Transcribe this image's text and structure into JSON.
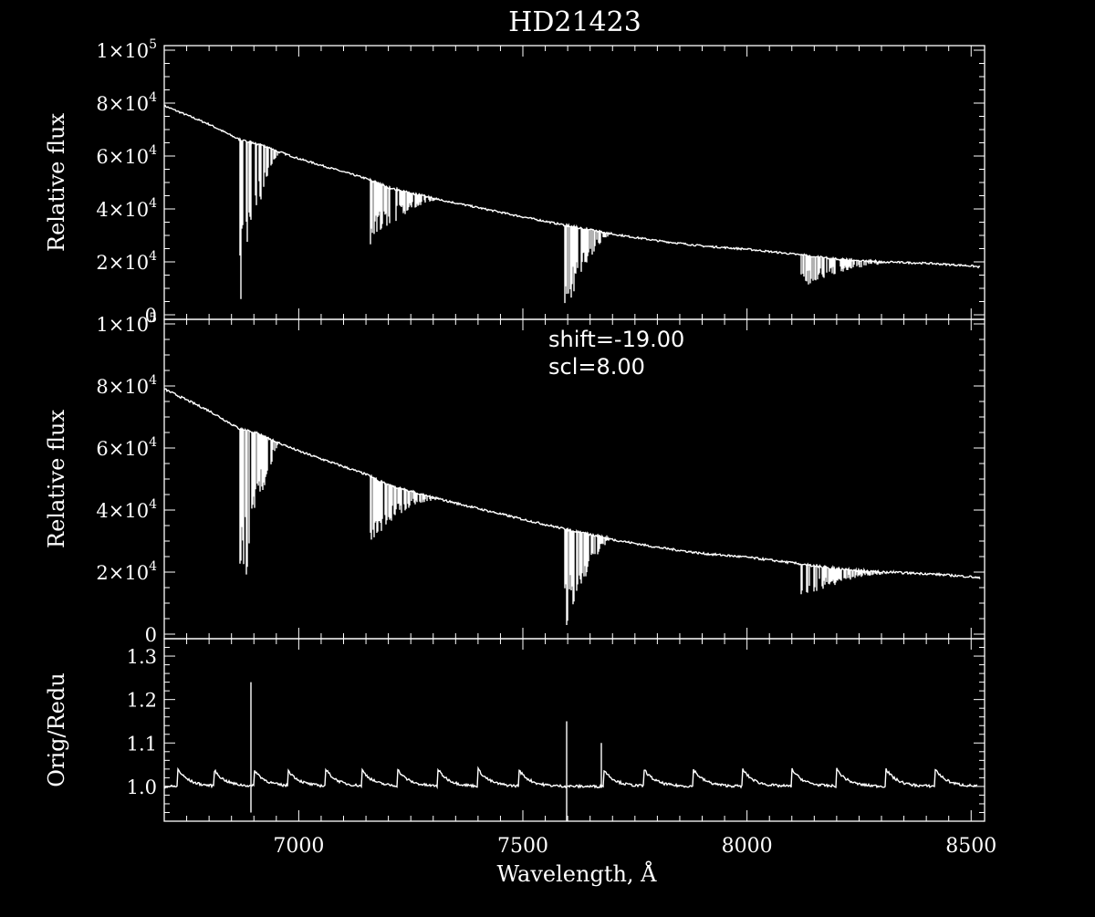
{
  "title": "HD21423",
  "colors": {
    "background": "#000000",
    "foreground": "#ffffff"
  },
  "x_axis": {
    "label": "Wavelength, Å",
    "range": [
      6700,
      8530
    ],
    "ticks": [
      7000,
      7500,
      8000,
      8500
    ],
    "tick_labels": [
      "7000",
      "7500",
      "8000",
      "8500"
    ]
  },
  "chart_data": [
    {
      "type": "line",
      "panel": "top",
      "ylabel": "Relative flux",
      "ylim": [
        0,
        100000
      ],
      "yticks": [
        {
          "value": 0,
          "mant": "0",
          "exp": ""
        },
        {
          "value": 20000,
          "mant": "2×10",
          "exp": "4"
        },
        {
          "value": 40000,
          "mant": "4×10",
          "exp": "4"
        },
        {
          "value": 60000,
          "mant": "6×10",
          "exp": "4"
        },
        {
          "value": 80000,
          "mant": "8×10",
          "exp": "4"
        },
        {
          "value": 100000,
          "mant": "1×10",
          "exp": "5"
        }
      ],
      "continuum": {
        "x": [
          6700,
          6800,
          6870,
          6900,
          7000,
          7100,
          7150,
          7200,
          7300,
          7400,
          7500,
          7590,
          7700,
          7800,
          7900,
          8000,
          8100,
          8200,
          8300,
          8400,
          8500,
          8520
        ],
        "y": [
          79000,
          72000,
          66000,
          65000,
          59000,
          54000,
          51500,
          48000,
          44000,
          40500,
          37000,
          34000,
          30500,
          28000,
          26000,
          24800,
          23000,
          21000,
          20000,
          19500,
          18500,
          18000
        ]
      },
      "absorption_bands": [
        {
          "from": 6868,
          "to": 6960,
          "depth_to": 3000
        },
        {
          "from": 7160,
          "to": 7320,
          "depth_to": 25000
        },
        {
          "from": 7593,
          "to": 7700,
          "depth_to": 0
        },
        {
          "from": 8120,
          "to": 8330,
          "depth_to": 10000
        }
      ]
    },
    {
      "type": "line",
      "panel": "middle",
      "ylabel": "Relative flux",
      "ylim": [
        0,
        100000
      ],
      "yticks": [
        {
          "value": 0,
          "mant": "0",
          "exp": ""
        },
        {
          "value": 20000,
          "mant": "2×10",
          "exp": "4"
        },
        {
          "value": 40000,
          "mant": "4×10",
          "exp": "4"
        },
        {
          "value": 60000,
          "mant": "6×10",
          "exp": "4"
        },
        {
          "value": 80000,
          "mant": "8×10",
          "exp": "4"
        },
        {
          "value": 100000,
          "mant": "1×10",
          "exp": "5"
        }
      ],
      "annotations": [
        "shift=-19.00",
        "scl=8.00"
      ],
      "continuum": {
        "x": [
          6700,
          6800,
          6870,
          6900,
          7000,
          7100,
          7150,
          7200,
          7300,
          7400,
          7500,
          7590,
          7700,
          7800,
          7900,
          8000,
          8100,
          8200,
          8300,
          8400,
          8500,
          8520
        ],
        "y": [
          79000,
          72000,
          66000,
          65000,
          59000,
          54000,
          51500,
          48000,
          44000,
          40500,
          37000,
          34000,
          30500,
          28000,
          26000,
          24800,
          23000,
          21000,
          20000,
          19500,
          18500,
          18000
        ]
      },
      "absorption_bands": [
        {
          "from": 6868,
          "to": 6960,
          "depth_to": 3000
        },
        {
          "from": 7160,
          "to": 7320,
          "depth_to": 29000
        },
        {
          "from": 7593,
          "to": 7700,
          "depth_to": 0
        },
        {
          "from": 8120,
          "to": 8330,
          "depth_to": 11000
        }
      ]
    },
    {
      "type": "line",
      "panel": "bottom",
      "ylabel": "Orig/Redu",
      "ylim": [
        0.92,
        1.34
      ],
      "yticks": [
        {
          "value": 1.0,
          "mant": "1.0",
          "exp": ""
        },
        {
          "value": 1.1,
          "mant": "1.1",
          "exp": ""
        },
        {
          "value": 1.2,
          "mant": "1.2",
          "exp": ""
        },
        {
          "value": 1.3,
          "mant": "1.3",
          "exp": ""
        }
      ],
      "baseline": 1.0,
      "bumps_x": [
        6730,
        6810,
        6900,
        6975,
        7060,
        7140,
        7220,
        7310,
        7400,
        7490,
        7680,
        7770,
        7880,
        7990,
        8100,
        8200,
        8310,
        8420
      ],
      "bump_height": 0.04,
      "spikes": [
        {
          "x": 6893,
          "high": 1.24,
          "low": 0.94
        },
        {
          "x": 7598,
          "high": 1.15,
          "low": 0.92
        },
        {
          "x": 7675,
          "high": 1.1,
          "low": 1.0
        }
      ]
    }
  ]
}
